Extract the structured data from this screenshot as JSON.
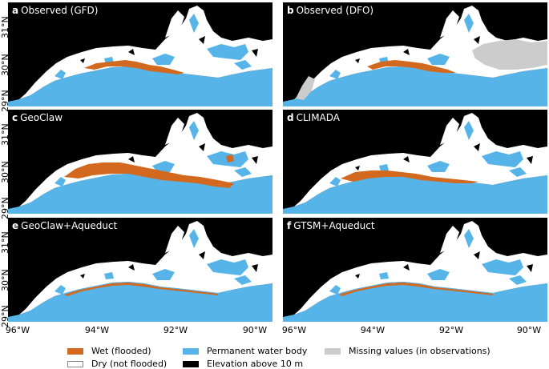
{
  "panels": [
    {
      "letter": "a",
      "title": "Observed (GFD)"
    },
    {
      "letter": "b",
      "title": "Observed (DFO)"
    },
    {
      "letter": "c",
      "title": "GeoClaw"
    },
    {
      "letter": "d",
      "title": "CLIMADA"
    },
    {
      "letter": "e",
      "title": "GeoClaw+Aqueduct"
    },
    {
      "letter": "f",
      "title": "GTSM+Aqueduct"
    }
  ],
  "lat_ticks": [
    "31°N",
    "30°N",
    "29°N"
  ],
  "lon_ticks": [
    "96°W",
    "94°W",
    "92°W",
    "90°W"
  ],
  "legend": [
    {
      "label": "Wet (flooded)",
      "color": "#d2691e"
    },
    {
      "label": "Dry (not flooded)",
      "color": "#ffffff"
    },
    {
      "label": "Permanent water body",
      "color": "#56b4e9"
    },
    {
      "label": "Elevation above 10 m",
      "color": "#000000"
    },
    {
      "label": "Missing values (in observations)",
      "color": "#cccccc"
    }
  ],
  "colors": {
    "wet": "#d2691e",
    "dry": "#ffffff",
    "water": "#56b4e9",
    "high": "#000000",
    "missing": "#cccccc"
  }
}
